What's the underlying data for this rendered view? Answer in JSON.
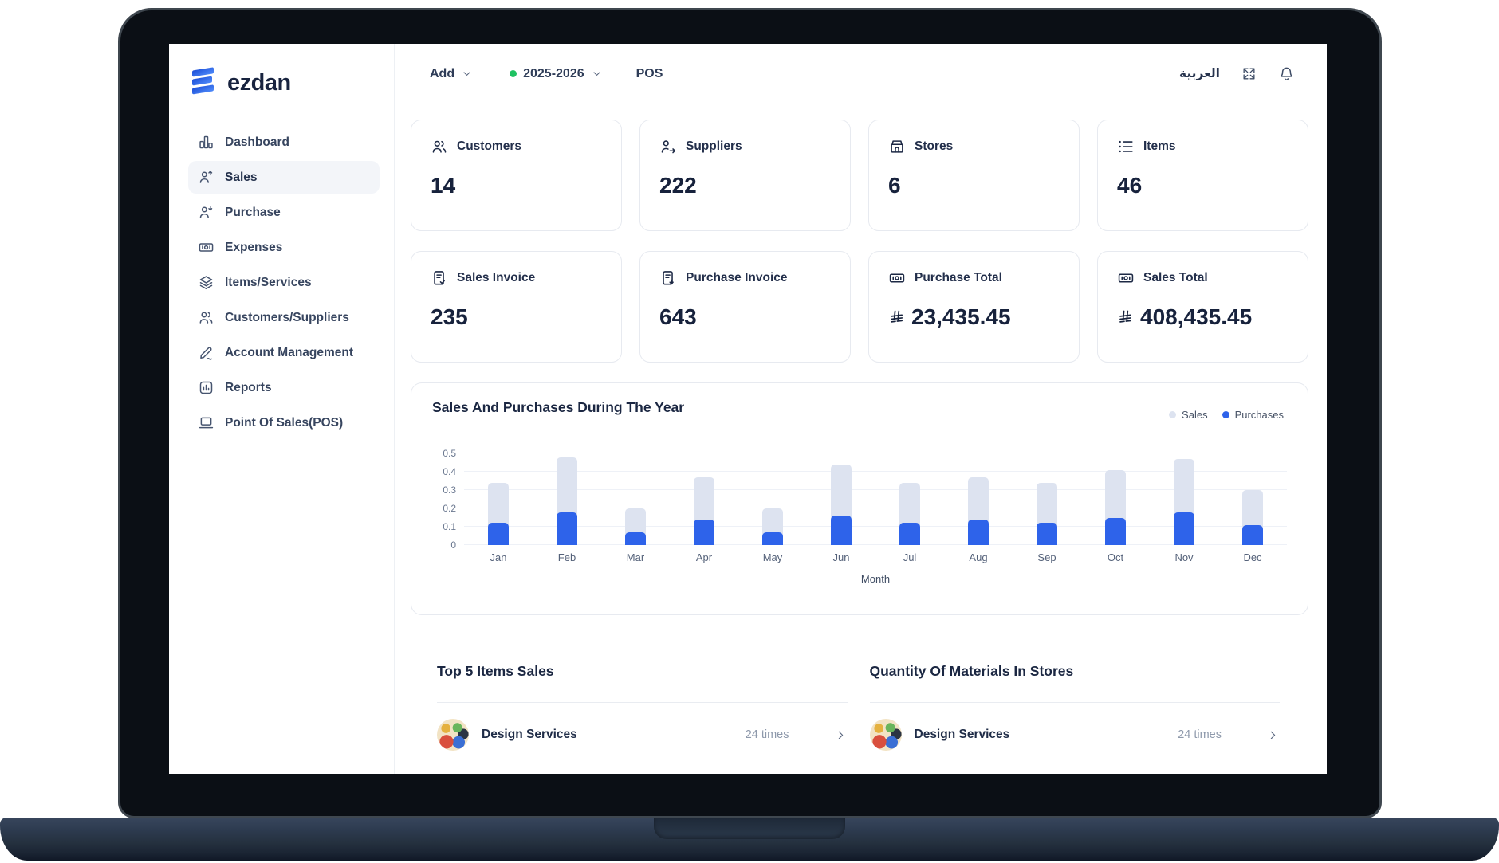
{
  "brand": {
    "name": "ezdan"
  },
  "sidebar": {
    "items": [
      {
        "label": "Dashboard",
        "icon": "dashboard-icon",
        "active": false
      },
      {
        "label": "Sales",
        "icon": "sales-icon",
        "active": true
      },
      {
        "label": "Purchase",
        "icon": "purchase-icon",
        "active": false
      },
      {
        "label": "Expenses",
        "icon": "expenses-icon",
        "active": false
      },
      {
        "label": "Items/Services",
        "icon": "items-services-icon",
        "active": false
      },
      {
        "label": "Customers/Suppliers",
        "icon": "customers-suppliers-icon",
        "active": false
      },
      {
        "label": "Account Management",
        "icon": "account-management-icon",
        "active": false
      },
      {
        "label": "Reports",
        "icon": "reports-icon",
        "active": false
      },
      {
        "label": "Point Of Sales(POS)",
        "icon": "pos-icon",
        "active": false
      }
    ]
  },
  "topbar": {
    "add": {
      "label": "Add"
    },
    "year": {
      "label": "2025-2026",
      "dot_color": "#1fc262"
    },
    "pos_label": "POS",
    "language_label": "العربية"
  },
  "stats": [
    {
      "label": "Customers",
      "value": "14",
      "icon": "users-icon",
      "currency": false
    },
    {
      "label": "Suppliers",
      "value": "222",
      "icon": "user-arrow-icon",
      "currency": false
    },
    {
      "label": "Stores",
      "value": "6",
      "icon": "store-icon",
      "currency": false
    },
    {
      "label": "Items",
      "value": "46",
      "icon": "list-icon",
      "currency": false
    },
    {
      "label": "Sales Invoice",
      "value": "235",
      "icon": "invoice-check-icon",
      "currency": false
    },
    {
      "label": "Purchase Invoice",
      "value": "643",
      "icon": "invoice-down-icon",
      "currency": false
    },
    {
      "label": "Purchase Total",
      "value": "23,435.45",
      "icon": "banknote-icon",
      "currency": true
    },
    {
      "label": "Sales Total",
      "value": "408,435.45",
      "icon": "banknote-icon",
      "currency": true
    }
  ],
  "chart_data": {
    "type": "bar",
    "title": "Sales And Purchases During The Year",
    "xlabel": "Month",
    "categories": [
      "Jan",
      "Feb",
      "Mar",
      "Apr",
      "May",
      "Jun",
      "Jul",
      "Aug",
      "Sep",
      "Oct",
      "Nov",
      "Dec"
    ],
    "series": [
      {
        "name": "Sales",
        "color": "#dde3f0",
        "values": [
          0.34,
          0.48,
          0.2,
          0.37,
          0.2,
          0.44,
          0.34,
          0.37,
          0.34,
          0.41,
          0.47,
          0.3
        ]
      },
      {
        "name": "Purchases",
        "color": "#2e63ea",
        "values": [
          0.12,
          0.18,
          0.07,
          0.14,
          0.07,
          0.16,
          0.12,
          0.14,
          0.12,
          0.15,
          0.18,
          0.11
        ]
      }
    ],
    "yticks": [
      0,
      0.1,
      0.2,
      0.3,
      0.4,
      0.5
    ],
    "ylim": [
      0,
      0.5
    ],
    "grid": true,
    "legend_position": "top-right"
  },
  "sections": [
    {
      "title": "Top 5 Items Sales",
      "items": [
        {
          "name": "Design Services",
          "count": "24 times"
        }
      ]
    },
    {
      "title": "Quantity Of Materials In Stores",
      "items": [
        {
          "name": "Design Services",
          "count": "24 times"
        }
      ]
    }
  ],
  "colors": {
    "accent": "#2e63ea",
    "sales_bar": "#dde3f0",
    "green_dot": "#1fc262",
    "text_dark": "#1b2742"
  }
}
